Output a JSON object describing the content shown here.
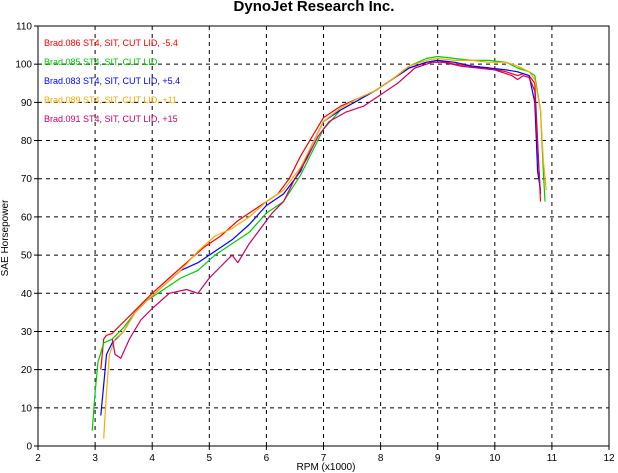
{
  "chart_data": {
    "type": "line",
    "title": "DynoJet Research Inc.",
    "xlabel": "RPM (x1000)",
    "ylabel": "SAE Horsepower",
    "xlim": [
      2,
      12
    ],
    "ylim": [
      0,
      110
    ],
    "x_ticks": [
      2,
      3,
      4,
      5,
      6,
      7,
      8,
      9,
      10,
      11,
      12
    ],
    "y_ticks": [
      0,
      10,
      20,
      30,
      40,
      50,
      60,
      70,
      80,
      90,
      100,
      110
    ],
    "grid": true,
    "legend_position": "top-left",
    "series": [
      {
        "name": "Brad.086  ST4, SIT, CUT LID, -5.4",
        "color": "#ff0000",
        "points": [
          [
            3.1,
            20
          ],
          [
            3.15,
            28
          ],
          [
            3.2,
            29
          ],
          [
            3.3,
            29.5
          ],
          [
            3.4,
            31
          ],
          [
            3.6,
            34
          ],
          [
            3.8,
            37
          ],
          [
            4.0,
            40
          ],
          [
            4.3,
            44
          ],
          [
            4.6,
            48
          ],
          [
            4.9,
            52
          ],
          [
            5.2,
            55
          ],
          [
            5.5,
            59
          ],
          [
            5.8,
            62
          ],
          [
            6.0,
            64
          ],
          [
            6.2,
            66
          ],
          [
            6.4,
            70
          ],
          [
            6.6,
            76
          ],
          [
            6.8,
            81
          ],
          [
            7.0,
            86
          ],
          [
            7.3,
            89
          ],
          [
            7.6,
            91
          ],
          [
            7.9,
            93
          ],
          [
            8.2,
            96
          ],
          [
            8.5,
            99
          ],
          [
            8.8,
            100.5
          ],
          [
            9.0,
            101
          ],
          [
            9.3,
            100
          ],
          [
            9.6,
            99.5
          ],
          [
            9.9,
            99
          ],
          [
            10.2,
            98
          ],
          [
            10.4,
            97
          ],
          [
            10.5,
            97.5
          ],
          [
            10.6,
            97
          ],
          [
            10.7,
            95
          ],
          [
            10.75,
            80
          ],
          [
            10.8,
            64
          ]
        ]
      },
      {
        "name": "Brad.085  ST4, SIT, CUT LID",
        "color": "#00cc00",
        "points": [
          [
            2.95,
            4
          ],
          [
            3.0,
            14
          ],
          [
            3.05,
            22
          ],
          [
            3.15,
            27
          ],
          [
            3.3,
            28
          ],
          [
            3.5,
            31
          ],
          [
            3.7,
            35
          ],
          [
            3.9,
            38
          ],
          [
            4.2,
            41
          ],
          [
            4.5,
            44
          ],
          [
            4.8,
            46
          ],
          [
            5.1,
            50
          ],
          [
            5.4,
            53
          ],
          [
            5.7,
            56
          ],
          [
            6.0,
            61
          ],
          [
            6.3,
            64
          ],
          [
            6.6,
            71
          ],
          [
            6.8,
            77
          ],
          [
            7.0,
            83
          ],
          [
            7.3,
            88
          ],
          [
            7.6,
            90.5
          ],
          [
            7.9,
            93
          ],
          [
            8.2,
            96
          ],
          [
            8.5,
            99.5
          ],
          [
            8.8,
            101.5
          ],
          [
            9.0,
            102
          ],
          [
            9.3,
            101.5
          ],
          [
            9.6,
            101
          ],
          [
            9.9,
            101
          ],
          [
            10.2,
            100.5
          ],
          [
            10.4,
            99
          ],
          [
            10.6,
            98
          ],
          [
            10.7,
            97
          ],
          [
            10.8,
            88
          ],
          [
            10.85,
            72
          ],
          [
            10.88,
            64
          ]
        ]
      },
      {
        "name": "Brad.083  ST4, SIT, CUT LID, +5.4",
        "color": "#0000ff",
        "points": [
          [
            3.1,
            8
          ],
          [
            3.15,
            16
          ],
          [
            3.2,
            24
          ],
          [
            3.3,
            27
          ],
          [
            3.5,
            30
          ],
          [
            3.7,
            35
          ],
          [
            3.9,
            38
          ],
          [
            4.2,
            42
          ],
          [
            4.5,
            46
          ],
          [
            4.8,
            48
          ],
          [
            5.1,
            51
          ],
          [
            5.4,
            54
          ],
          [
            5.7,
            58
          ],
          [
            6.0,
            63
          ],
          [
            6.3,
            66
          ],
          [
            6.6,
            72
          ],
          [
            6.8,
            79
          ],
          [
            7.0,
            85
          ],
          [
            7.3,
            88
          ],
          [
            7.6,
            90.5
          ],
          [
            7.9,
            93
          ],
          [
            8.2,
            96
          ],
          [
            8.5,
            99
          ],
          [
            8.8,
            100.5
          ],
          [
            9.0,
            101
          ],
          [
            9.3,
            100.5
          ],
          [
            9.6,
            99.5
          ],
          [
            9.9,
            99
          ],
          [
            10.2,
            98.5
          ],
          [
            10.4,
            98
          ],
          [
            10.6,
            97
          ],
          [
            10.7,
            90
          ],
          [
            10.75,
            72
          ],
          [
            10.8,
            67
          ]
        ]
      },
      {
        "name": "Brad.089  ST4, SIT, CUT LID, +11",
        "color": "#ffaa00",
        "points": [
          [
            3.15,
            2
          ],
          [
            3.2,
            14
          ],
          [
            3.25,
            24
          ],
          [
            3.35,
            28
          ],
          [
            3.5,
            30
          ],
          [
            3.7,
            35
          ],
          [
            3.9,
            38
          ],
          [
            4.2,
            42
          ],
          [
            4.5,
            46
          ],
          [
            4.8,
            51
          ],
          [
            5.1,
            55
          ],
          [
            5.4,
            57
          ],
          [
            5.7,
            60
          ],
          [
            6.0,
            64
          ],
          [
            6.3,
            67
          ],
          [
            6.6,
            73
          ],
          [
            6.8,
            79
          ],
          [
            7.0,
            85
          ],
          [
            7.3,
            88.5
          ],
          [
            7.6,
            91
          ],
          [
            7.9,
            93
          ],
          [
            8.2,
            96
          ],
          [
            8.5,
            99.5
          ],
          [
            8.8,
            101
          ],
          [
            9.0,
            101.5
          ],
          [
            9.3,
            101
          ],
          [
            9.6,
            101
          ],
          [
            9.9,
            100.5
          ],
          [
            10.2,
            100.5
          ],
          [
            10.4,
            99.5
          ],
          [
            10.6,
            98
          ],
          [
            10.7,
            96
          ],
          [
            10.8,
            88
          ],
          [
            10.85,
            75
          ],
          [
            10.9,
            67
          ]
        ]
      },
      {
        "name": "Brad.091  ST4, SIT, CUT LID, +15",
        "color": "#cc0066",
        "points": [
          [
            3.3,
            28
          ],
          [
            3.35,
            24
          ],
          [
            3.45,
            23
          ],
          [
            3.6,
            28
          ],
          [
            3.8,
            33
          ],
          [
            4.0,
            36
          ],
          [
            4.3,
            40
          ],
          [
            4.6,
            41
          ],
          [
            4.8,
            40
          ],
          [
            5.0,
            44
          ],
          [
            5.2,
            47
          ],
          [
            5.4,
            50
          ],
          [
            5.5,
            48
          ],
          [
            5.7,
            53
          ],
          [
            5.9,
            57
          ],
          [
            6.1,
            61
          ],
          [
            6.3,
            64
          ],
          [
            6.5,
            70
          ],
          [
            6.7,
            75
          ],
          [
            6.9,
            81
          ],
          [
            7.1,
            85
          ],
          [
            7.4,
            87.5
          ],
          [
            7.7,
            89
          ],
          [
            8.0,
            92
          ],
          [
            8.3,
            95
          ],
          [
            8.6,
            99
          ],
          [
            8.9,
            100.5
          ],
          [
            9.1,
            100.5
          ],
          [
            9.4,
            99.5
          ],
          [
            9.7,
            99
          ],
          [
            10.0,
            98.5
          ],
          [
            10.3,
            97
          ],
          [
            10.4,
            96
          ],
          [
            10.5,
            97
          ],
          [
            10.6,
            96.5
          ],
          [
            10.7,
            93
          ],
          [
            10.75,
            78
          ],
          [
            10.8,
            66
          ]
        ]
      }
    ]
  }
}
